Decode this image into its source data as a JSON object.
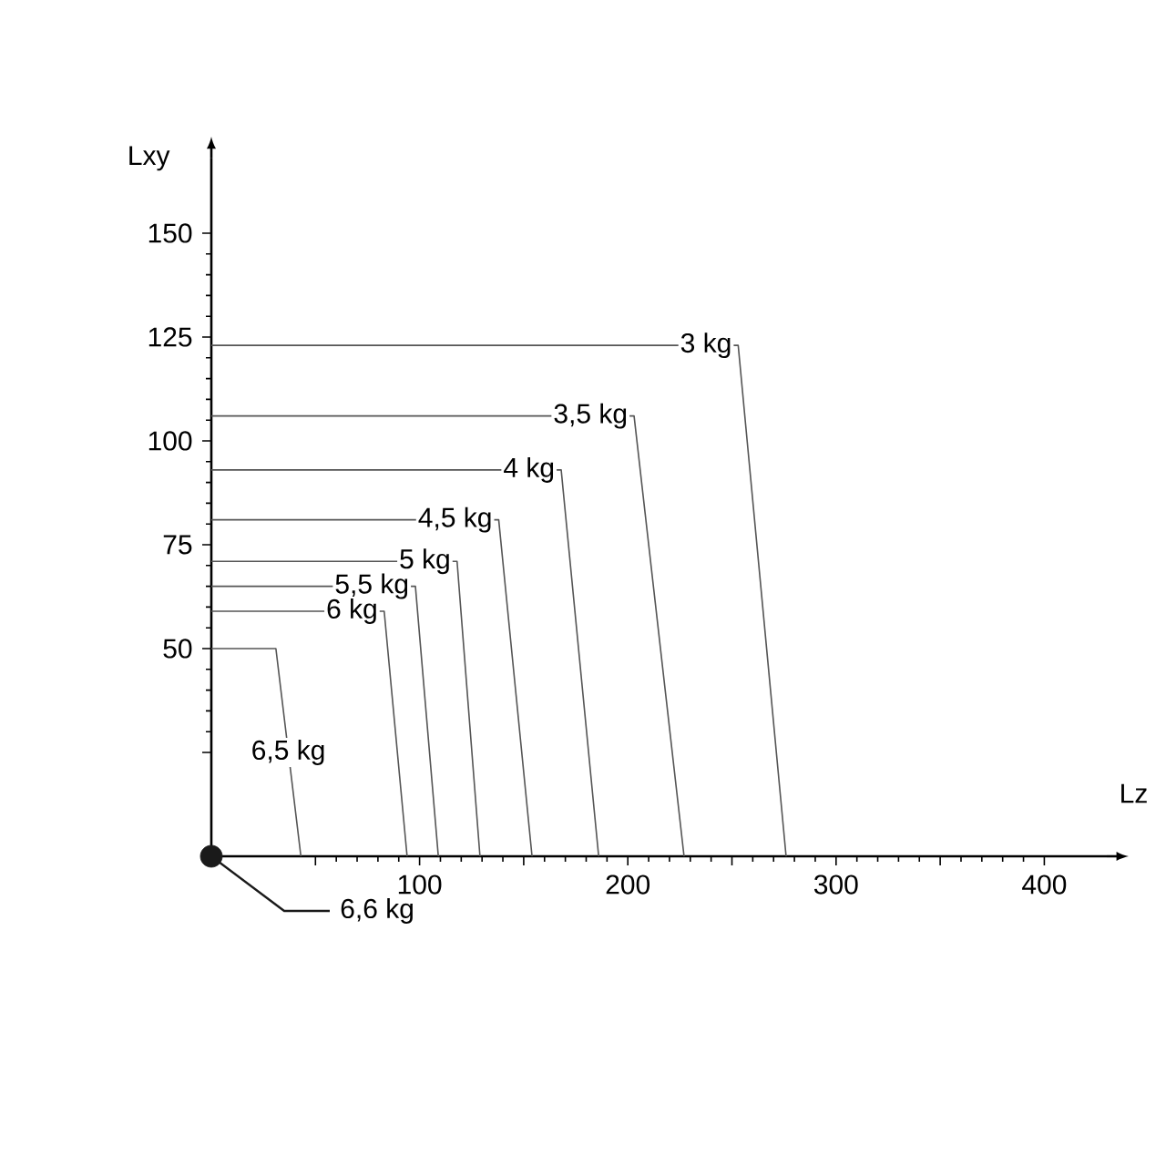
{
  "chart_data": {
    "type": "line",
    "xlabel": "Lz",
    "ylabel": "Lxy",
    "xlim": [
      0,
      430
    ],
    "ylim": [
      0,
      168
    ],
    "xticks": [
      {
        "value": 50,
        "label": null
      },
      100,
      {
        "value": 150,
        "label": null
      },
      200,
      {
        "value": 250,
        "label": null
      },
      300,
      {
        "value": 350,
        "label": null
      },
      400
    ],
    "yticks": [
      {
        "value": 25,
        "label": null
      },
      50,
      75,
      100,
      125,
      150
    ],
    "series": [
      {
        "name": "3 kg",
        "color": "#555555",
        "x": [
          0,
          253,
          276
        ],
        "values": [
          123,
          123,
          0
        ]
      },
      {
        "name": "3,5 kg",
        "color": "#555555",
        "x": [
          0,
          203,
          227
        ],
        "values": [
          106,
          106,
          0
        ]
      },
      {
        "name": "4 kg",
        "color": "#555555",
        "x": [
          0,
          168,
          186
        ],
        "values": [
          93,
          93,
          0
        ]
      },
      {
        "name": "4,5 kg",
        "color": "#555555",
        "x": [
          0,
          138,
          154
        ],
        "values": [
          81,
          81,
          0
        ]
      },
      {
        "name": "5 kg",
        "color": "#555555",
        "x": [
          0,
          118,
          129
        ],
        "values": [
          71,
          71,
          0
        ]
      },
      {
        "name": "5,5 kg",
        "color": "#555555",
        "x": [
          0,
          98,
          109
        ],
        "values": [
          65,
          65,
          0
        ]
      },
      {
        "name": "6 kg",
        "color": "#555555",
        "x": [
          0,
          83,
          94
        ],
        "values": [
          59,
          59,
          0
        ]
      },
      {
        "name": "6,5 kg",
        "color": "#555555",
        "x": [
          0,
          31,
          43
        ],
        "values": [
          50,
          50,
          0
        ]
      },
      {
        "name": "6,6 kg",
        "type": "scatter",
        "color": "#1a1a1a",
        "x": [
          0
        ],
        "values": [
          0
        ]
      }
    ]
  }
}
